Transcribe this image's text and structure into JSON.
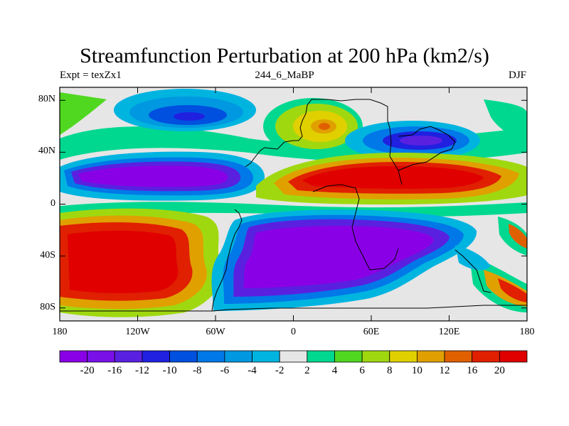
{
  "title": "Streamfunction Perturbation at 200 hPa (km2/s)",
  "subtitle_left": "Expt = texZx1",
  "subtitle_center": "244_6_MaBP",
  "subtitle_right": "DJF",
  "y_ticks": [
    {
      "label": "80N",
      "value": 80
    },
    {
      "label": "40N",
      "value": 40
    },
    {
      "label": "0",
      "value": 0
    },
    {
      "label": "40S",
      "value": -40
    },
    {
      "label": "80S",
      "value": -80
    }
  ],
  "x_ticks": [
    {
      "label": "180",
      "value": -180
    },
    {
      "label": "120W",
      "value": -120
    },
    {
      "label": "60W",
      "value": -60
    },
    {
      "label": "0",
      "value": 0
    },
    {
      "label": "60E",
      "value": 60
    },
    {
      "label": "120E",
      "value": 120
    },
    {
      "label": "180",
      "value": 180
    }
  ],
  "colorbar": {
    "labels": [
      "-20",
      "-16",
      "-12",
      "-10",
      "-8",
      "-6",
      "-4",
      "-2",
      "2",
      "4",
      "6",
      "8",
      "10",
      "12",
      "16",
      "20"
    ],
    "colors": [
      "#8a00e6",
      "#7a10e8",
      "#5a20e0",
      "#2020e0",
      "#0050e0",
      "#0078e8",
      "#0098e0",
      "#00b4e0",
      "#e6e6e6",
      "#00d890",
      "#50d820",
      "#a0d810",
      "#e0d000",
      "#e0a000",
      "#e06000",
      "#e02000",
      "#e00000"
    ]
  },
  "map": {
    "lon_range": [
      -180,
      180
    ],
    "lat_range": [
      -90,
      90
    ],
    "background_color": "#e6e6e6"
  }
}
